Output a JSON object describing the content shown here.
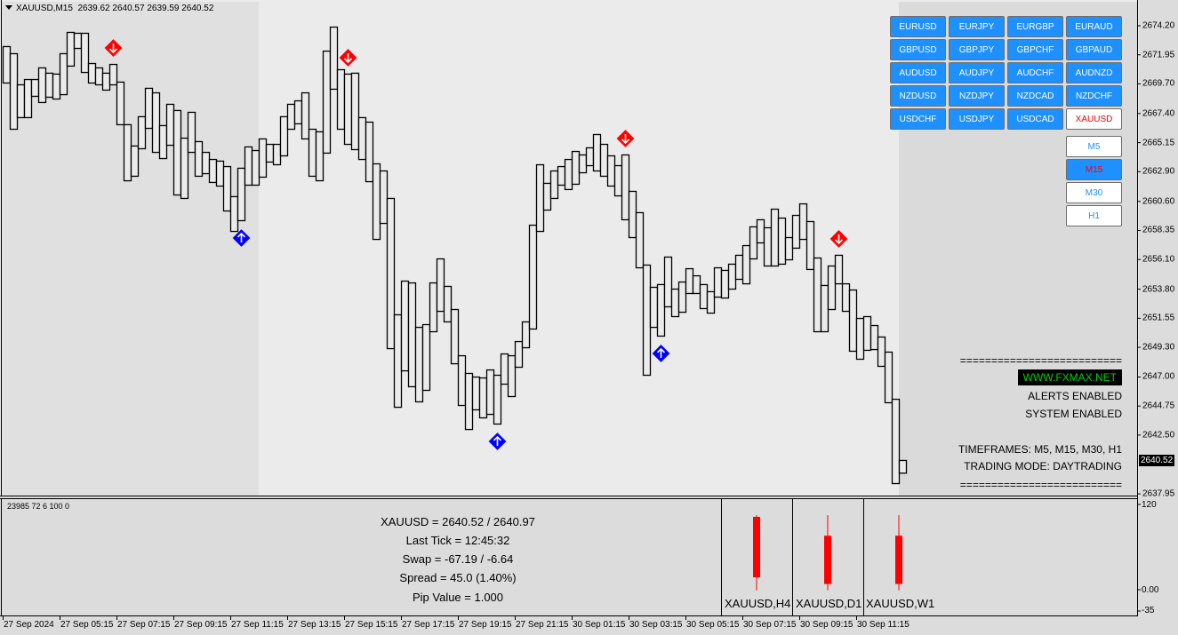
{
  "header": {
    "symbol": "XAUUSD,M15",
    "ohlc": "2639.62 2640.57 2639.59 2640.52"
  },
  "colors": {
    "buy_signal": "#0000ff",
    "sell_signal": "#ff0000",
    "button": "#1e90ff",
    "active_text": "#ff0000",
    "tf_text": "#1e90ff",
    "site_text": "#00d000",
    "mini_candle": "#ff0000"
  },
  "symbol_buttons": [
    {
      "label": "EURUSD"
    },
    {
      "label": "EURJPY"
    },
    {
      "label": "EURGBP"
    },
    {
      "label": "EURAUD"
    },
    {
      "label": "GBPUSD"
    },
    {
      "label": "GBPJPY"
    },
    {
      "label": "GBPCHF"
    },
    {
      "label": "GBPAUD"
    },
    {
      "label": "AUDUSD"
    },
    {
      "label": "AUDJPY"
    },
    {
      "label": "AUDCHF"
    },
    {
      "label": "AUDNZD"
    },
    {
      "label": "NZDUSD"
    },
    {
      "label": "NZDJPY"
    },
    {
      "label": "NZDCAD"
    },
    {
      "label": "NZDCHF"
    },
    {
      "label": "USDCHF"
    },
    {
      "label": "USDJPY"
    },
    {
      "label": "USDCAD"
    },
    {
      "label": "XAUUSD",
      "active": true
    }
  ],
  "timeframe_buttons": [
    {
      "label": "M5"
    },
    {
      "label": "M15",
      "active": true
    },
    {
      "label": "M30"
    },
    {
      "label": "H1"
    }
  ],
  "info_panel": {
    "separator": "==========================",
    "site": "WWW.FXMAX.NET",
    "alerts": "ALERTS ENABLED",
    "system": "SYSTEM ENABLED",
    "timeframes": "TIMEFRAMES: M5, M15, M30, H1",
    "mode": "TRADING MODE: DAYTRADING"
  },
  "current_price": "2640.52",
  "indicator_panel": {
    "stats": "23985 72 6 100 0",
    "lines": [
      "XAUUSD = 2640.52 / 2640.97",
      "Last Tick = 12:45:32",
      "Swap = -67.19 / -6.64",
      "Spread = 45.0  (1.40%)",
      "Pip Value = 1.000"
    ],
    "scale_labels": [
      "120",
      "0.00",
      "-35"
    ],
    "mini_candles": [
      {
        "label": "XAUUSD,H4",
        "open": 102.5,
        "close": 17.5,
        "high": 105,
        "low": -1
      },
      {
        "label": "XAUUSD,D1",
        "open": 76,
        "close": 8,
        "high": 105,
        "low": -1
      },
      {
        "label": "XAUUSD,W1",
        "open": 76,
        "close": 8,
        "high": 105,
        "low": -1
      }
    ]
  },
  "chart_data": {
    "type": "bar",
    "bar_style": "hollow high-low boxes",
    "ylim": [
      2637.95,
      2674.2
    ],
    "y_ticks": [
      "2674.20",
      "2671.95",
      "2669.70",
      "2667.40",
      "2665.15",
      "2662.90",
      "2660.60",
      "2658.35",
      "2656.10",
      "2653.80",
      "2651.55",
      "2649.30",
      "2647.00",
      "2644.75",
      "2642.50",
      "2637.95"
    ],
    "x_ticks": [
      "27 Sep 2024",
      "27 Sep 05:15",
      "27 Sep 07:15",
      "27 Sep 09:15",
      "27 Sep 11:15",
      "27 Sep 13:15",
      "27 Sep 15:15",
      "27 Sep 17:15",
      "27 Sep 19:15",
      "27 Sep 21:15",
      "30 Sep 01:15",
      "30 Sep 03:15",
      "30 Sep 05:15",
      "30 Sep 07:15",
      "30 Sep 09:15",
      "30 Sep 11:15"
    ],
    "bars": [
      [
        2672.62,
        2669.8
      ],
      [
        2672.07,
        2666.22
      ],
      [
        2669.66,
        2667.12
      ],
      [
        2670.07,
        2667.12
      ],
      [
        2670.07,
        2668.77
      ],
      [
        2670.97,
        2668.29
      ],
      [
        2670.56,
        2668.7
      ],
      [
        2670.49,
        2668.56
      ],
      [
        2672.07,
        2668.9
      ],
      [
        2673.72,
        2671.11
      ],
      [
        2673.65,
        2672.48
      ],
      [
        2673.65,
        2670.62
      ],
      [
        2671.31,
        2669.8
      ],
      [
        2670.97,
        2669.66
      ],
      [
        2670.56,
        2669.25
      ],
      [
        2671.24,
        2669.66
      ],
      [
        2669.87,
        2666.57
      ],
      [
        2666.57,
        2662.23
      ],
      [
        2664.92,
        2662.58
      ],
      [
        2667.19,
        2664.71
      ],
      [
        2669.39,
        2666.29
      ],
      [
        2669.04,
        2664.43
      ],
      [
        2666.5,
        2663.95
      ],
      [
        2668.15,
        2664.98
      ],
      [
        2667.67,
        2661.13
      ],
      [
        2665.53,
        2660.86
      ],
      [
        2667.53,
        2664.43
      ],
      [
        2665.26,
        2662.58
      ],
      [
        2664.43,
        2662.78
      ],
      [
        2663.88,
        2662.1
      ],
      [
        2663.75,
        2661.82
      ],
      [
        2663.33,
        2659.89
      ],
      [
        2661.0,
        2658.31
      ],
      [
        2663.2,
        2659.14
      ],
      [
        2664.85,
        2661.89
      ],
      [
        2664.57,
        2661.89
      ],
      [
        2665.47,
        2662.51
      ],
      [
        2665.05,
        2663.68
      ],
      [
        2665.05,
        2663.47
      ],
      [
        2667.19,
        2664.16
      ],
      [
        2668.15,
        2666.22
      ],
      [
        2668.42,
        2666.64
      ],
      [
        2669.04,
        2665.47
      ],
      [
        2666.22,
        2662.58
      ],
      [
        2666.02,
        2662.23
      ],
      [
        2672.27,
        2664.37
      ],
      [
        2674.13,
        2669.32
      ],
      [
        2670.83,
        2666.22
      ],
      [
        2670.49,
        2665.05
      ],
      [
        2670.56,
        2664.64
      ],
      [
        2667.12,
        2663.88
      ],
      [
        2666.77,
        2662.16
      ],
      [
        2663.54,
        2657.69
      ],
      [
        2662.99,
        2658.93
      ],
      [
        2660.86,
        2649.23
      ],
      [
        2651.85,
        2644.69
      ],
      [
        2654.46,
        2647.51
      ],
      [
        2654.32,
        2646.28
      ],
      [
        2650.88,
        2645.11
      ],
      [
        2651.09,
        2646.0
      ],
      [
        2654.32,
        2650.54
      ],
      [
        2656.18,
        2652.12
      ],
      [
        2654.05,
        2651.3
      ],
      [
        2652.26,
        2648.06
      ],
      [
        2648.68,
        2644.83
      ],
      [
        2647.31,
        2642.97
      ],
      [
        2647.03,
        2644.49
      ],
      [
        2646.96,
        2643.87
      ],
      [
        2647.58,
        2644.14
      ],
      [
        2647.17,
        2643.39
      ],
      [
        2648.82,
        2646.48
      ],
      [
        2648.68,
        2645.52
      ],
      [
        2649.78,
        2647.79
      ],
      [
        2651.3,
        2649.3
      ],
      [
        2658.79,
        2650.75
      ],
      [
        2663.47,
        2658.31
      ],
      [
        2662.03,
        2659.96
      ],
      [
        2662.99,
        2660.86
      ],
      [
        2663.33,
        2661.89
      ],
      [
        2663.88,
        2661.55
      ],
      [
        2664.5,
        2661.96
      ],
      [
        2664.23,
        2662.85
      ],
      [
        2664.78,
        2663.4
      ],
      [
        2665.81,
        2662.99
      ],
      [
        2665.05,
        2662.58
      ],
      [
        2664.16,
        2661.82
      ],
      [
        2663.4,
        2661.06
      ],
      [
        2664.23,
        2659.21
      ],
      [
        2661.41,
        2657.83
      ],
      [
        2659.76,
        2655.49
      ],
      [
        2655.7,
        2647.17
      ],
      [
        2653.98,
        2650.88
      ],
      [
        2654.19,
        2650.2
      ],
      [
        2656.32,
        2652.47
      ],
      [
        2653.84,
        2651.71
      ],
      [
        2654.39,
        2652.05
      ],
      [
        2655.42,
        2653.5
      ],
      [
        2654.87,
        2653.5
      ],
      [
        2654.19,
        2652.33
      ],
      [
        2653.64,
        2651.98
      ],
      [
        2655.49,
        2653.22
      ],
      [
        2655.29,
        2653.15
      ],
      [
        2655.77,
        2653.84
      ],
      [
        2656.46,
        2654.6
      ],
      [
        2657.21,
        2654.25
      ],
      [
        2658.66,
        2656.18
      ],
      [
        2659.21,
        2657.42
      ],
      [
        2658.59,
        2655.63
      ],
      [
        2660.03,
        2655.63
      ],
      [
        2659.34,
        2655.77
      ],
      [
        2657.83,
        2656.11
      ],
      [
        2659.55,
        2657.01
      ],
      [
        2660.44,
        2657.69
      ],
      [
        2659.07,
        2655.36
      ],
      [
        2656.25,
        2650.54
      ],
      [
        2654.12,
        2650.54
      ],
      [
        2655.63,
        2652.26
      ],
      [
        2656.46,
        2654.25
      ],
      [
        2654.25,
        2652.12
      ],
      [
        2653.77,
        2649.03
      ],
      [
        2651.57,
        2648.41
      ],
      [
        2651.71,
        2649.1
      ],
      [
        2651.02,
        2649.16
      ],
      [
        2650.13,
        2647.86
      ],
      [
        2648.96,
        2645.04
      ],
      [
        2645.31,
        2638.78
      ],
      [
        2640.57,
        2639.59
      ]
    ],
    "signals": [
      {
        "bar": 16,
        "type": "sell"
      },
      {
        "bar": 49,
        "type": "sell"
      },
      {
        "bar": 88,
        "type": "sell"
      },
      {
        "bar": 118,
        "type": "sell"
      },
      {
        "bar": 34,
        "type": "buy"
      },
      {
        "bar": 70,
        "type": "buy"
      },
      {
        "bar": 93,
        "type": "buy"
      }
    ]
  }
}
